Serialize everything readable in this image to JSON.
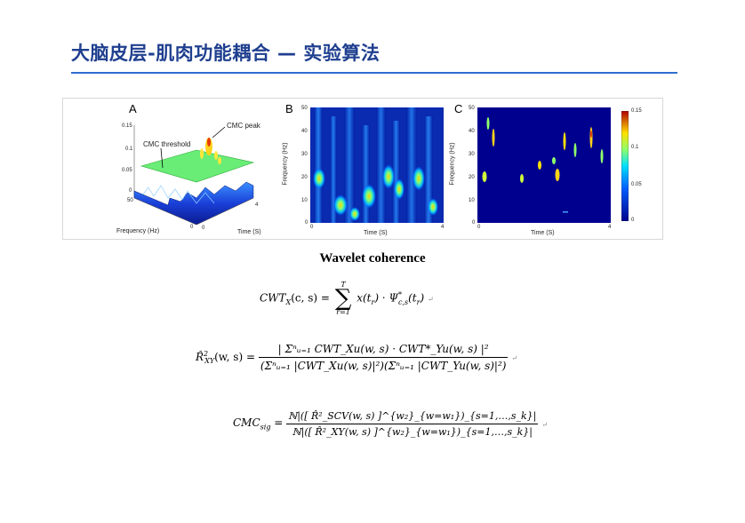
{
  "slide": {
    "title": "大脑皮层-肌肉功能耦合 — 实验算法",
    "heading": "Wavelet coherence"
  },
  "figure": {
    "panelA": {
      "label": "A",
      "annotation_peak": "CMC peak",
      "annotation_threshold": "CMC threshold",
      "z_ticks": [
        "0.15",
        "0.1",
        "0.05",
        "0"
      ],
      "freq_ticks": [
        "50",
        "0"
      ],
      "time_ticks": [
        "0",
        "4"
      ],
      "xlabel": "Frequency (Hz)",
      "ylabel": "Time (S)"
    },
    "panelB": {
      "label": "B",
      "y_ticks": [
        "50",
        "40",
        "30",
        "20",
        "10",
        "0"
      ],
      "x_ticks": [
        "0",
        "4"
      ],
      "ylabel": "Frequency (Hz)",
      "xlabel": "Time (S)"
    },
    "panelC": {
      "label": "C",
      "y_ticks": [
        "50",
        "40",
        "30",
        "20",
        "10",
        "0"
      ],
      "x_ticks": [
        "0",
        "4"
      ],
      "ylabel": "Frequency (Hz)",
      "xlabel": "Time (S)",
      "colorbar_ticks": [
        "0.15",
        "0.1",
        "0.05",
        "0"
      ],
      "colors": {
        "low": "#00008f",
        "mid": "#00c8ff",
        "high": "#ffe000",
        "peak": "#d00000"
      }
    }
  },
  "equations": {
    "eq1": {
      "lhs": "CWT",
      "lhs_sub": "X",
      "lhs_args": "(c, s) =",
      "sum_top": "T",
      "sum_bottom": "r=1",
      "body": "x(t",
      "body_sub": "r",
      "body2": ") · Ψ",
      "psi_sup": "*",
      "psi_sub": "c,s",
      "body3": "(t",
      "body3_sub": "r",
      "body4": ")"
    },
    "eq2": {
      "lhs": "R̂",
      "lhs_sup": "2",
      "lhs_sub": "XY",
      "lhs_args": "(w, s) =",
      "numerator": "| Σⁿᵤ₌₁ CWT_Xu(w, s) · CWT*_Yu(w, s) |²",
      "denominator": "(Σⁿᵤ₌₁ |CWT_Xu(w, s)|²)(Σⁿᵤ₌₁ |CWT_Yu(w, s)|²)"
    },
    "eq3": {
      "lhs": "CMC",
      "lhs_sub": "sig",
      "lhs_eq": "=",
      "numerator": "ℕ|([ R̂²_SCV(w, s) ]^{w₂}_{w=w₁})_{s=1,…,s_k}|",
      "denominator": "ℕ|([ R̂²_XY(w, s) ]^{w₂}_{w=w₁})_{s=1,…,s_k}|"
    },
    "return_mark": "↵"
  }
}
